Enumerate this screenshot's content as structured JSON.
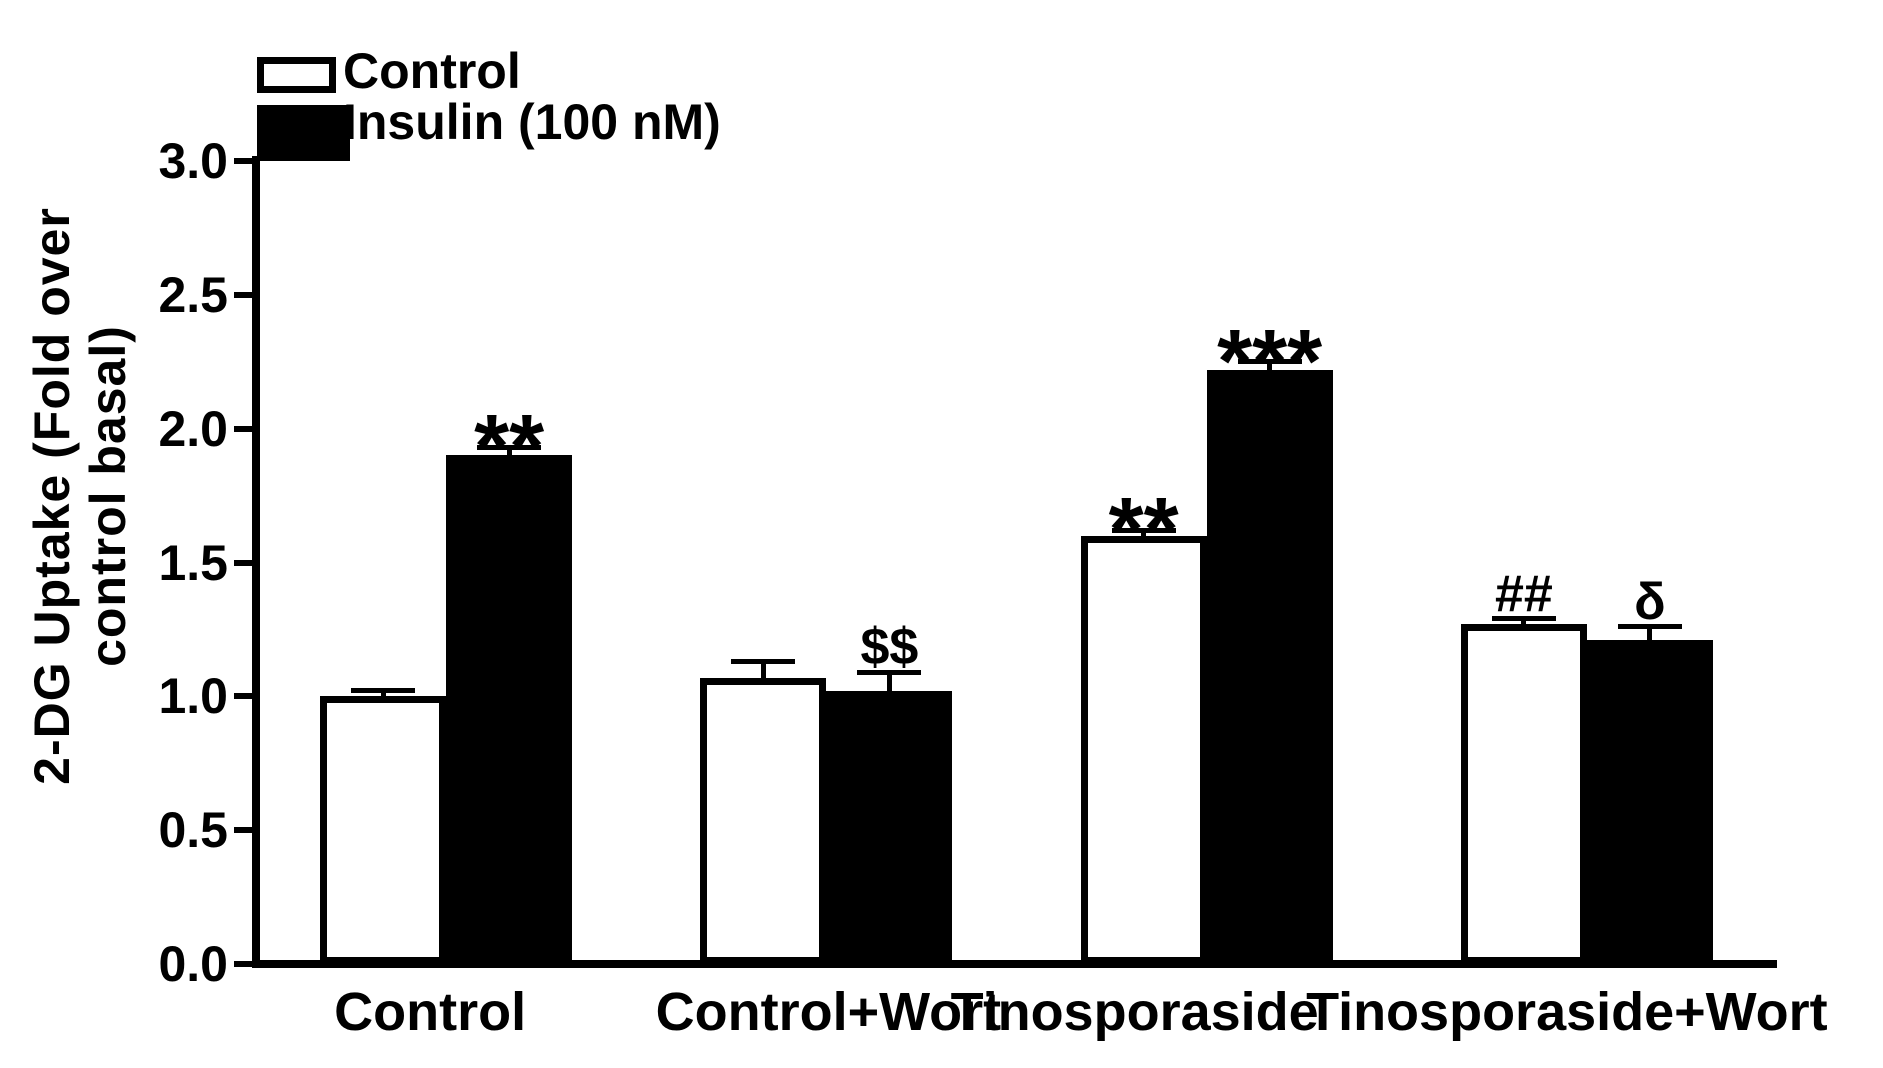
{
  "chart_data": {
    "type": "bar",
    "title": "",
    "ylabel": "2-DG Uptake (Fold over control basal)",
    "ylabel_lines": [
      "2-DG Uptake (Fold over",
      "control basal)"
    ],
    "ylim": [
      0.0,
      3.0
    ],
    "ytick_step": 0.5,
    "ytick_labels": [
      "3.0",
      "2.5",
      "2.0",
      "1.5",
      "1.0",
      "0.5",
      "0.0"
    ],
    "grid": false,
    "legend_position": "top-left",
    "categories": [
      "Control",
      "Control+Wort",
      "Tinosporaside",
      "Tinosporaside+Wort"
    ],
    "series": [
      {
        "name": "Control",
        "fill": "#ffffff",
        "border": "#000000",
        "values": [
          1.0,
          1.07,
          1.6,
          1.27
        ],
        "errors": [
          0.02,
          0.06,
          0.02,
          0.02
        ],
        "annotations": [
          "",
          "",
          "**",
          "##"
        ]
      },
      {
        "name": "Insulin (100 nM)",
        "fill": "#000000",
        "border": "#000000",
        "values": [
          1.9,
          1.02,
          2.22,
          1.21
        ],
        "errors": [
          0.03,
          0.07,
          0.03,
          0.05
        ],
        "annotations": [
          "**",
          "$$",
          "***",
          "δ"
        ]
      }
    ],
    "axis_color": "#000000",
    "text_color": "#000000",
    "background": "#ffffff"
  }
}
